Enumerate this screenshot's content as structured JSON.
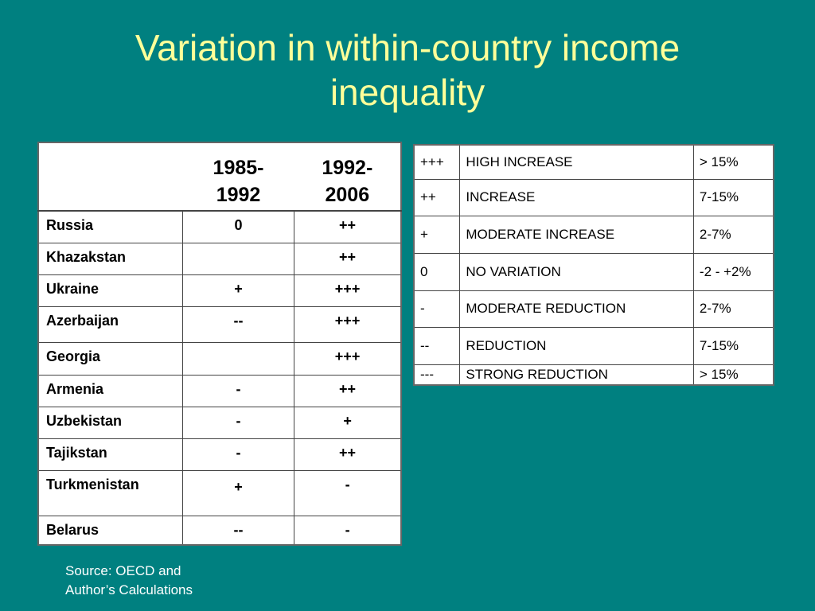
{
  "title": {
    "line1": "Variation in within-country income",
    "line2": "inequality"
  },
  "country_table": {
    "headers": [
      {
        "line1": "1985-",
        "line2": "1992"
      },
      {
        "line1": "1992-",
        "line2": "2006"
      }
    ],
    "rows": [
      {
        "country": "Russia",
        "p1": "0",
        "p2": "++"
      },
      {
        "country": "Khazakstan",
        "p1": "",
        "p2": "++"
      },
      {
        "country": "Ukraine",
        "p1": "+",
        "p2": "+++"
      },
      {
        "country": "Azerbaijan",
        "p1": "--",
        "p2": "+++"
      },
      {
        "country": "Georgia",
        "p1": "",
        "p2": "+++"
      },
      {
        "country": "Armenia",
        "p1": "-",
        "p2": "++"
      },
      {
        "country": "Uzbekistan",
        "p1": "-",
        "p2": "+"
      },
      {
        "country": "Tajikstan",
        "p1": "-",
        "p2": "++"
      },
      {
        "country": "Turkmenistan",
        "p1": "+",
        "p2": "-"
      },
      {
        "country": "Belarus",
        "p1": "--",
        "p2": "-"
      }
    ]
  },
  "legend_table": {
    "rows": [
      {
        "symbol": "+++",
        "meaning": "HIGH INCREASE",
        "range": "> 15%"
      },
      {
        "symbol": "++",
        "meaning": "INCREASE",
        "range": "7-15%"
      },
      {
        "symbol": "+",
        "meaning": "MODERATE INCREASE",
        "range": "2-7%"
      },
      {
        "symbol": "0",
        "meaning": "NO VARIATION",
        "range": "-2 - +2%"
      },
      {
        "symbol": "-",
        "meaning": "MODERATE REDUCTION",
        "range": "2-7%"
      },
      {
        "symbol": "--",
        "meaning": "REDUCTION",
        "range": "7-15%"
      },
      {
        "symbol": "---",
        "meaning": "STRONG REDUCTION",
        "range": "> 15%"
      }
    ]
  },
  "source": {
    "line1": "Source: OECD and",
    "line2": "Author’s Calculations"
  },
  "colors": {
    "background": "#008080",
    "title": "#FFFF99",
    "table_background": "#FFFFFF"
  }
}
